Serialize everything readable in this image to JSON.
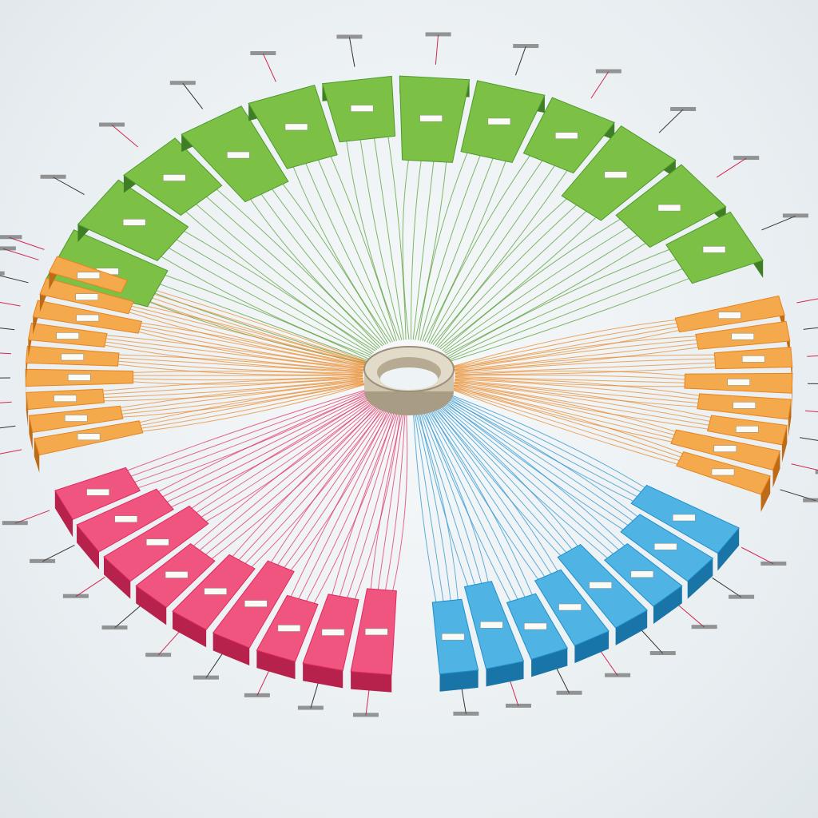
{
  "diagram": {
    "type": "radial segmented ring with connectors to a central hub",
    "labels_legible": false,
    "hub_color": "#c9bfa8",
    "groups": [
      {
        "id": "green",
        "color": "#4f9a2e",
        "light": "#7cc046",
        "start_deg": -162,
        "end_deg": -22,
        "blocks": 12
      },
      {
        "id": "orange-right",
        "color": "#e8831e",
        "light": "#f4a94c",
        "start_deg": -16,
        "end_deg": 24,
        "blocks": 8
      },
      {
        "id": "blue",
        "color": "#1f8fcc",
        "light": "#4fb4e4",
        "start_deg": 30,
        "end_deg": 86,
        "blocks": 8
      },
      {
        "id": "pink",
        "color": "#de2a5c",
        "light": "#f0557f",
        "start_deg": 92,
        "end_deg": 158,
        "blocks": 9
      },
      {
        "id": "orange-left",
        "color": "#e8831e",
        "light": "#f4a94c",
        "start_deg": 164,
        "end_deg": 204,
        "blocks": 9
      }
    ]
  }
}
